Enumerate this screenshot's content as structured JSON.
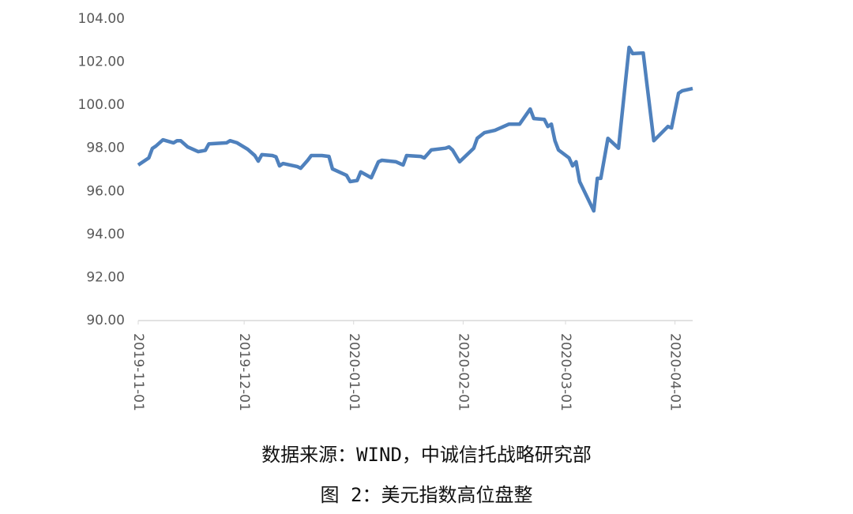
{
  "chart_data": {
    "type": "line",
    "x": [
      "2019-11-01",
      "2019-11-04",
      "2019-11-05",
      "2019-11-06",
      "2019-11-08",
      "2019-11-11",
      "2019-11-12",
      "2019-11-13",
      "2019-11-15",
      "2019-11-18",
      "2019-11-20",
      "2019-11-21",
      "2019-11-26",
      "2019-11-27",
      "2019-11-29",
      "2019-12-02",
      "2019-12-04",
      "2019-12-05",
      "2019-12-06",
      "2019-12-09",
      "2019-12-10",
      "2019-12-11",
      "2019-12-12",
      "2019-12-16",
      "2019-12-17",
      "2019-12-19",
      "2019-12-20",
      "2019-12-23",
      "2019-12-25",
      "2019-12-26",
      "2019-12-30",
      "2019-12-31",
      "2020-01-02",
      "2020-01-03",
      "2020-01-06",
      "2020-01-08",
      "2020-01-09",
      "2020-01-13",
      "2020-01-15",
      "2020-01-16",
      "2020-01-20",
      "2020-01-21",
      "2020-01-23",
      "2020-01-27",
      "2020-01-28",
      "2020-01-29",
      "2020-01-31",
      "2020-02-04",
      "2020-02-05",
      "2020-02-07",
      "2020-02-10",
      "2020-02-14",
      "2020-02-17",
      "2020-02-20",
      "2020-02-21",
      "2020-02-24",
      "2020-02-25",
      "2020-02-26",
      "2020-02-27",
      "2020-02-28",
      "2020-03-02",
      "2020-03-03",
      "2020-03-04",
      "2020-03-05",
      "2020-03-09",
      "2020-03-10",
      "2020-03-11",
      "2020-03-13",
      "2020-03-16",
      "2020-03-19",
      "2020-03-20",
      "2020-03-23",
      "2020-03-24",
      "2020-03-26",
      "2020-03-30",
      "2020-03-31",
      "2020-04-02",
      "2020-04-03",
      "2020-04-06"
    ],
    "series": [
      {
        "name": "美元指数",
        "color": "#4f81bd",
        "values": [
          97.22,
          97.55,
          97.99,
          98.1,
          98.39,
          98.25,
          98.35,
          98.35,
          98.06,
          97.84,
          97.9,
          98.2,
          98.25,
          98.35,
          98.25,
          97.95,
          97.66,
          97.4,
          97.7,
          97.66,
          97.6,
          97.18,
          97.29,
          97.15,
          97.07,
          97.44,
          97.66,
          97.66,
          97.62,
          97.04,
          96.74,
          96.45,
          96.5,
          96.9,
          96.63,
          97.37,
          97.44,
          97.37,
          97.22,
          97.66,
          97.62,
          97.55,
          97.92,
          98.0,
          98.06,
          97.92,
          97.37,
          98.0,
          98.46,
          98.72,
          98.83,
          99.12,
          99.12,
          99.82,
          99.38,
          99.34,
          99.01,
          99.12,
          98.35,
          97.92,
          97.55,
          97.18,
          97.37,
          96.45,
          95.09,
          96.6,
          96.6,
          98.46,
          98.0,
          102.68,
          102.39,
          102.42,
          101.03,
          98.35,
          99.01,
          98.94,
          100.55,
          100.66,
          100.77
        ]
      }
    ],
    "xlim": [
      "2019-11-01",
      "2020-04-06"
    ],
    "xticks": [
      "2019-11-01",
      "2019-12-01",
      "2020-01-01",
      "2020-02-01",
      "2020-03-01",
      "2020-04-01"
    ],
    "ylim": [
      90,
      104
    ],
    "yticks": [
      {
        "value": 90,
        "label": "90.00"
      },
      {
        "value": 92,
        "label": "92.00"
      },
      {
        "value": 94,
        "label": "94.00"
      },
      {
        "value": 96,
        "label": "96.00"
      },
      {
        "value": 98,
        "label": "98.00"
      },
      {
        "value": 100,
        "label": "100.00"
      },
      {
        "value": 102,
        "label": "102.00"
      },
      {
        "value": 104,
        "label": "104.00"
      }
    ],
    "source": "数据来源：WIND，中诚信托战略研究部",
    "caption": "图 2：美元指数高位盘整"
  }
}
